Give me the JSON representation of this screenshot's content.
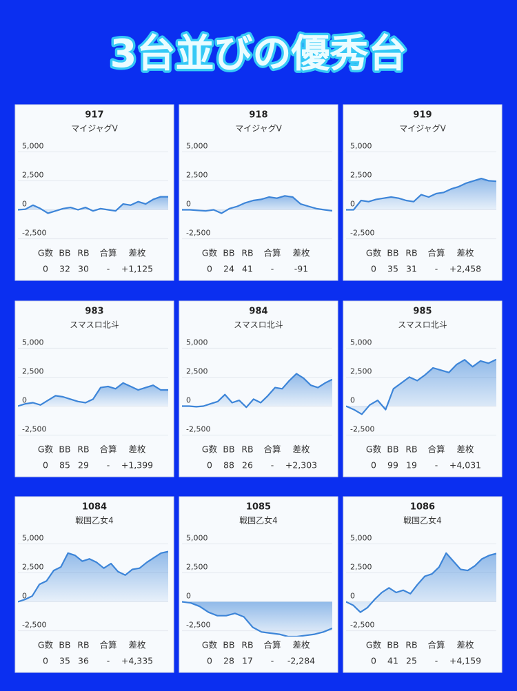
{
  "title": "3台並びの優秀台",
  "chart_data": [
    {
      "type": "line",
      "title": "917",
      "subtitle": "マイジャグV",
      "color": "#3d85d8",
      "ylim": [
        -3000,
        5200
      ],
      "yticks": [
        {
          "value": 5000,
          "label": "5,000"
        },
        {
          "value": 2500,
          "label": "2,500"
        },
        0,
        {
          "value": -2500,
          "label": "-2,500"
        }
      ],
      "values": [
        0,
        50,
        400,
        100,
        -300,
        -100,
        100,
        200,
        0,
        200,
        -100,
        100,
        0,
        -100,
        500,
        400,
        700,
        500,
        900,
        1125,
        1125
      ],
      "stats": {
        "headers": [
          "G数",
          "BB",
          "RB",
          "合算",
          "差枚"
        ],
        "values": [
          "0",
          "32",
          "30",
          "-",
          "+1,125"
        ]
      }
    },
    {
      "type": "line",
      "title": "918",
      "subtitle": "マイジャグV",
      "color": "#3d85d8",
      "ylim": [
        -3000,
        5200
      ],
      "yticks": [
        {
          "value": 5000,
          "label": "5,000"
        },
        {
          "value": 2500,
          "label": "2,500"
        },
        0,
        {
          "value": -2500,
          "label": "-2,500"
        }
      ],
      "values": [
        0,
        0,
        -50,
        -100,
        0,
        -300,
        100,
        300,
        600,
        800,
        900,
        1100,
        1000,
        1200,
        1100,
        500,
        300,
        100,
        0,
        -91
      ],
      "stats": {
        "headers": [
          "G数",
          "BB",
          "RB",
          "合算",
          "差枚"
        ],
        "values": [
          "0",
          "24",
          "41",
          "-",
          "-91"
        ]
      }
    },
    {
      "type": "line",
      "title": "919",
      "subtitle": "マイジャグV",
      "color": "#3d85d8",
      "ylim": [
        -3000,
        5200
      ],
      "yticks": [
        {
          "value": 5000,
          "label": "5,000"
        },
        {
          "value": 2500,
          "label": "2,500"
        },
        0,
        {
          "value": -2500,
          "label": "-2,500"
        }
      ],
      "values": [
        0,
        0,
        800,
        700,
        900,
        1000,
        1100,
        1000,
        800,
        700,
        1300,
        1100,
        1400,
        1500,
        1800,
        2000,
        2300,
        2500,
        2700,
        2500,
        2458
      ],
      "stats": {
        "headers": [
          "G数",
          "BB",
          "RB",
          "合算",
          "差枚"
        ],
        "values": [
          "0",
          "35",
          "31",
          "-",
          "+2,458"
        ]
      }
    },
    {
      "type": "line",
      "title": "983",
      "subtitle": "スマスロ北斗",
      "color": "#3d85d8",
      "ylim": [
        -3000,
        5200
      ],
      "yticks": [
        {
          "value": 5000,
          "label": "5,000"
        },
        {
          "value": 2500,
          "label": "2,500"
        },
        0,
        {
          "value": -2500,
          "label": "-2,500"
        }
      ],
      "values": [
        0,
        200,
        300,
        100,
        500,
        900,
        800,
        600,
        400,
        300,
        600,
        1600,
        1700,
        1500,
        2000,
        1700,
        1400,
        1600,
        1800,
        1400,
        1399
      ],
      "stats": {
        "headers": [
          "G数",
          "BB",
          "RB",
          "合算",
          "差枚"
        ],
        "values": [
          "0",
          "85",
          "29",
          "-",
          "+1,399"
        ]
      }
    },
    {
      "type": "line",
      "title": "984",
      "subtitle": "スマスロ北斗",
      "color": "#3d85d8",
      "ylim": [
        -3000,
        5200
      ],
      "yticks": [
        {
          "value": 5000,
          "label": "5,000"
        },
        {
          "value": 2500,
          "label": "2,500"
        },
        0,
        {
          "value": -2500,
          "label": "-2,500"
        }
      ],
      "values": [
        0,
        0,
        -50,
        0,
        200,
        400,
        1000,
        300,
        500,
        -100,
        600,
        300,
        900,
        1600,
        1500,
        2200,
        2800,
        2400,
        1800,
        1600,
        2000,
        2303
      ],
      "stats": {
        "headers": [
          "G数",
          "BB",
          "RB",
          "合算",
          "差枚"
        ],
        "values": [
          "0",
          "88",
          "26",
          "-",
          "+2,303"
        ]
      }
    },
    {
      "type": "line",
      "title": "985",
      "subtitle": "スマスロ北斗",
      "color": "#3d85d8",
      "ylim": [
        -3000,
        5200
      ],
      "yticks": [
        {
          "value": 5000,
          "label": "5,000"
        },
        {
          "value": 2500,
          "label": "2,500"
        },
        0,
        {
          "value": -2500,
          "label": "-2,500"
        }
      ],
      "values": [
        0,
        -300,
        -700,
        100,
        500,
        -300,
        1500,
        2000,
        2500,
        2200,
        2700,
        3300,
        3100,
        2900,
        3600,
        4000,
        3400,
        3900,
        3700,
        4031
      ],
      "stats": {
        "headers": [
          "G数",
          "BB",
          "RB",
          "合算",
          "差枚"
        ],
        "values": [
          "0",
          "99",
          "19",
          "-",
          "+4,031"
        ]
      }
    },
    {
      "type": "line",
      "title": "1084",
      "subtitle": "戦国乙女4",
      "color": "#3d85d8",
      "ylim": [
        -3000,
        5200
      ],
      "yticks": [
        {
          "value": 5000,
          "label": "5,000"
        },
        {
          "value": 2500,
          "label": "2,500"
        },
        0,
        {
          "value": -2500,
          "label": "-2,500"
        }
      ],
      "values": [
        0,
        200,
        500,
        1500,
        1800,
        2700,
        3000,
        4200,
        4000,
        3500,
        3700,
        3400,
        2900,
        3300,
        2600,
        2300,
        2800,
        2900,
        3400,
        3800,
        4200,
        4335
      ],
      "stats": {
        "headers": [
          "G数",
          "BB",
          "RB",
          "合算",
          "差枚"
        ],
        "values": [
          "0",
          "35",
          "36",
          "-",
          "+4,335"
        ]
      }
    },
    {
      "type": "line",
      "title": "1085",
      "subtitle": "戦国乙女4",
      "color": "#3d85d8",
      "ylim": [
        -3000,
        5200
      ],
      "yticks": [
        {
          "value": 5000,
          "label": "5,000"
        },
        {
          "value": 2500,
          "label": "2,500"
        },
        0,
        {
          "value": -2500,
          "label": "-2,500"
        }
      ],
      "values": [
        0,
        -100,
        -400,
        -900,
        -1200,
        -1200,
        -1000,
        -1300,
        -2200,
        -2600,
        -2700,
        -2800,
        -3000,
        -3000,
        -2900,
        -2800,
        -2600,
        -2284
      ],
      "stats": {
        "headers": [
          "G数",
          "BB",
          "RB",
          "合算",
          "差枚"
        ],
        "values": [
          "0",
          "28",
          "17",
          "-",
          "-2,284"
        ]
      }
    },
    {
      "type": "line",
      "title": "1086",
      "subtitle": "戦国乙女4",
      "color": "#3d85d8",
      "ylim": [
        -3000,
        5200
      ],
      "yticks": [
        {
          "value": 5000,
          "label": "5,000"
        },
        {
          "value": 2500,
          "label": "2,500"
        },
        0,
        {
          "value": -2500,
          "label": "-2,500"
        }
      ],
      "values": [
        0,
        -300,
        -900,
        -500,
        200,
        800,
        1200,
        800,
        1000,
        700,
        1500,
        2200,
        2400,
        3000,
        4200,
        3500,
        2800,
        2700,
        3100,
        3700,
        4000,
        4159
      ],
      "stats": {
        "headers": [
          "G数",
          "BB",
          "RB",
          "合算",
          "差枚"
        ],
        "values": [
          "0",
          "41",
          "25",
          "-",
          "+4,159"
        ]
      }
    }
  ]
}
